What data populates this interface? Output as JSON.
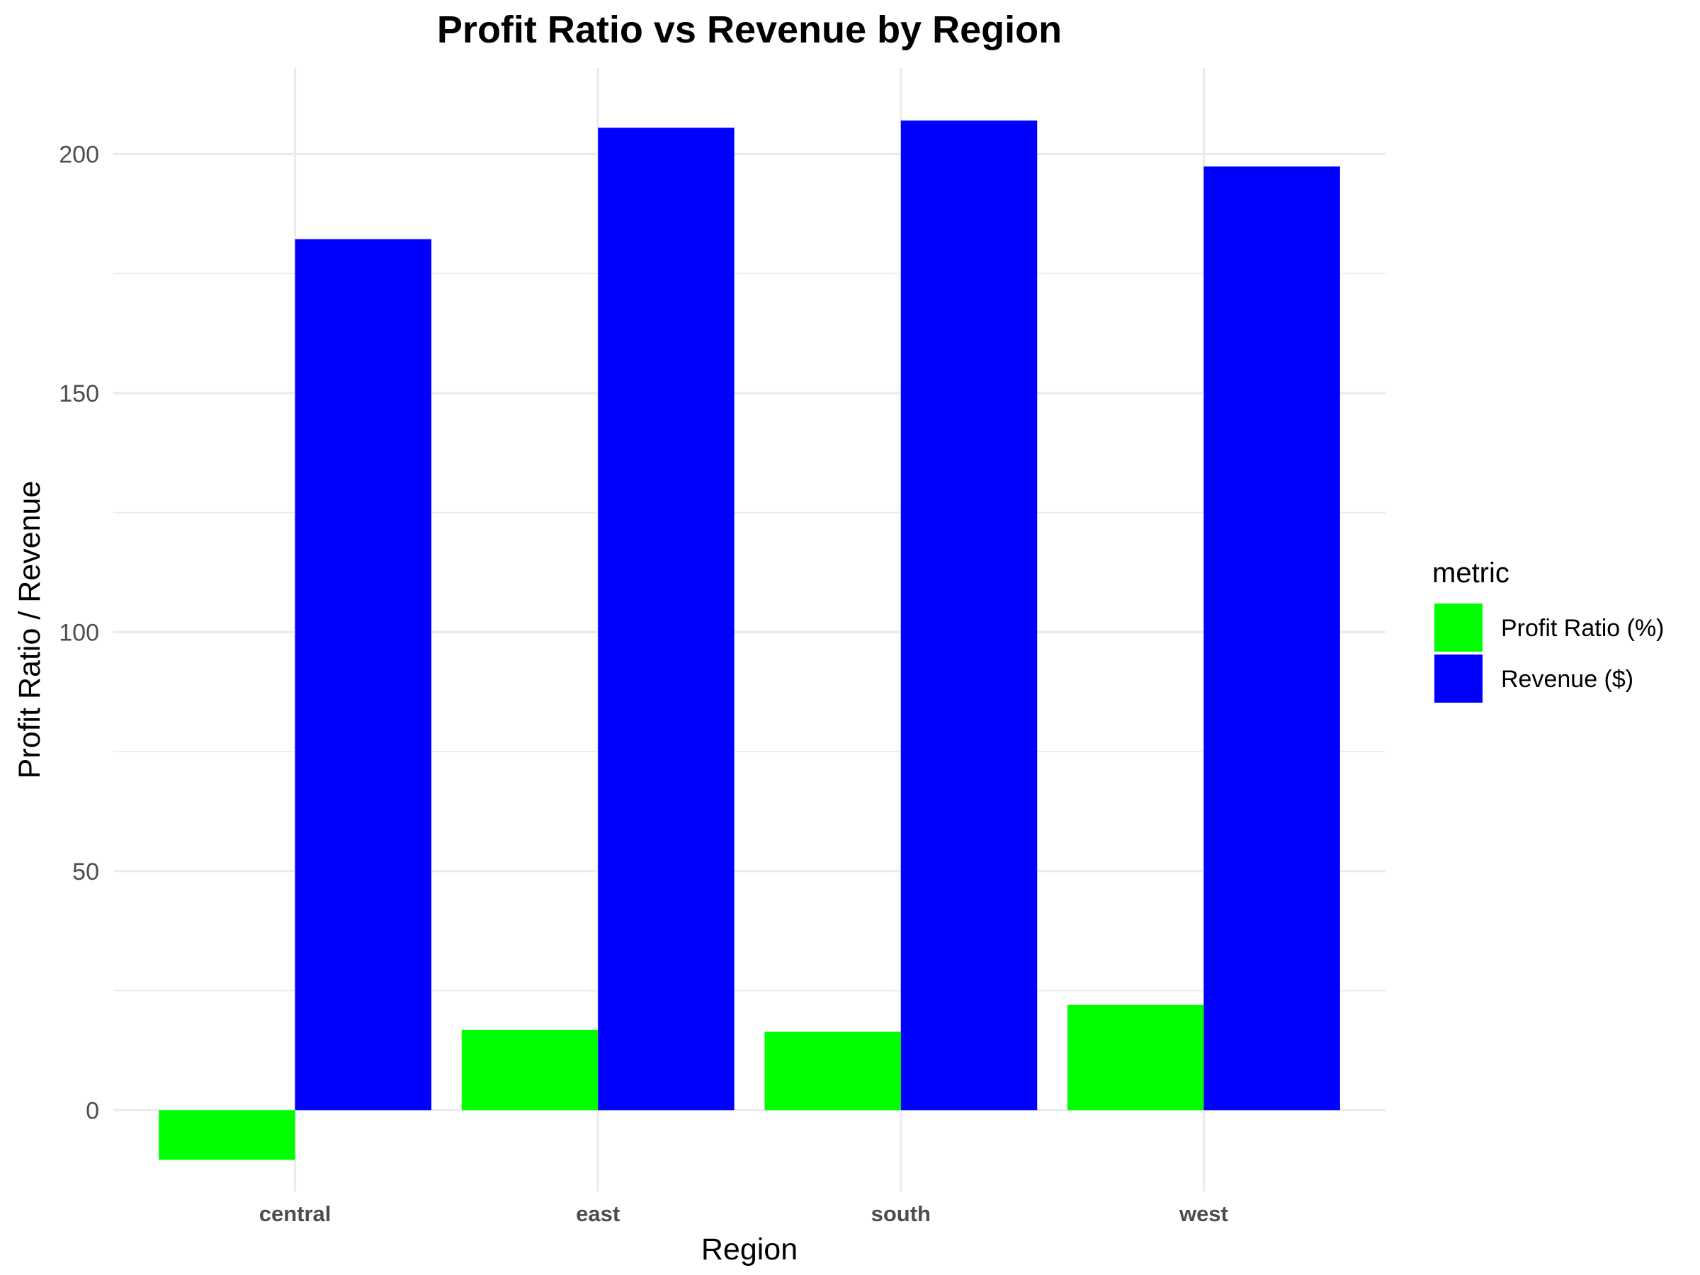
{
  "chart_data": {
    "type": "bar",
    "title": "Profit Ratio vs Revenue by Region",
    "xlabel": "Region",
    "ylabel": "Profit Ratio / Revenue",
    "categories": [
      "central",
      "east",
      "south",
      "west"
    ],
    "series": [
      {
        "name": "Profit Ratio (%)",
        "color": "#00ff00",
        "values": [
          -10.4,
          16.8,
          16.4,
          22.0
        ]
      },
      {
        "name": "Revenue ($)",
        "color": "#0000ff",
        "values": [
          182.2,
          205.5,
          207.0,
          197.4
        ]
      }
    ],
    "ylim": [
      -17,
      218
    ],
    "yticks": [
      0,
      50,
      100,
      150,
      200
    ],
    "grid": true,
    "legend": {
      "title": "metric",
      "position": "right"
    }
  }
}
